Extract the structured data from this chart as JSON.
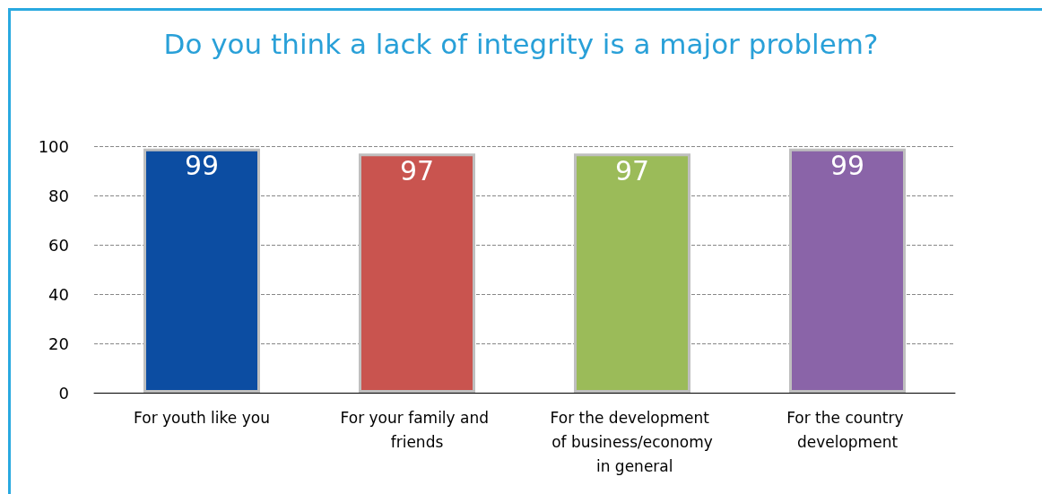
{
  "chart_data": {
    "type": "bar",
    "title": "Do you think a lack of integrity is a major problem?",
    "categories": [
      "For youth like you",
      "For your family and friends",
      "For the development of business/economy in general",
      "For the country development"
    ],
    "values": [
      99,
      97,
      97,
      99
    ],
    "colors": [
      "#0c4da2",
      "#c9544f",
      "#9bbb59",
      "#8a64a8"
    ],
    "ylim": [
      0,
      100
    ],
    "yticks": [
      0,
      20,
      40,
      60,
      80,
      100
    ],
    "grid": "y",
    "data_labels": true
  }
}
